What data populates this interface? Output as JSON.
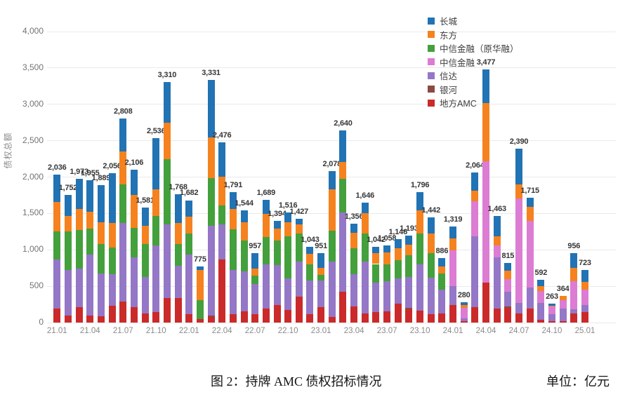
{
  "page": {
    "caption": "图 2：持牌 AMC 债权招标情况",
    "unit_label": "单位：亿元"
  },
  "chart_data": {
    "type": "bar",
    "stacked": true,
    "title": "图 2：持牌 AMC 债权招标情况",
    "unit": "亿元",
    "ylabel": "债权总额",
    "xlabel": "",
    "ylim": [
      0,
      4000
    ],
    "grid": true,
    "legend_position": "top-right",
    "yticks": [
      [
        0,
        "0"
      ],
      [
        500,
        "500"
      ],
      [
        1000,
        "1,000"
      ],
      [
        1500,
        "1,500"
      ],
      [
        2000,
        "2,000"
      ],
      [
        2500,
        "2,500"
      ],
      [
        3000,
        "3,000"
      ],
      [
        3500,
        "3,500"
      ],
      [
        4000,
        "4,000"
      ]
    ],
    "categories": [
      "21.01",
      "21.02",
      "21.03",
      "21.04",
      "21.05",
      "21.06",
      "21.07",
      "21.08",
      "21.09",
      "21.10",
      "21.11",
      "21.12",
      "22.01",
      "22.02",
      "22.03",
      "22.04",
      "22.05",
      "22.06",
      "22.07",
      "22.08",
      "22.09",
      "22.10",
      "22.11",
      "22.12",
      "23.01",
      "23.02",
      "23.03",
      "23.04",
      "23.05",
      "23.06",
      "23.07",
      "23.08",
      "23.09",
      "23.10",
      "23.11",
      "23.12",
      "24.01",
      "24.02",
      "24.03",
      "24.04",
      "24.05",
      "24.06",
      "24.07",
      "24.08",
      "24.09",
      "24.10",
      "24.11",
      "24.12",
      "25.01"
    ],
    "xtick_every": 3,
    "totals": [
      2036,
      1752,
      1973,
      1955,
      1889,
      2056,
      2808,
      2106,
      1581,
      2536,
      3310,
      1768,
      1682,
      775,
      3331,
      2476,
      1791,
      1544,
      957,
      1689,
      1394,
      1516,
      1427,
      1043,
      951,
      2078,
      2640,
      1356,
      1646,
      1042,
      1058,
      1146,
      1193,
      1796,
      1442,
      886,
      1319,
      280,
      2064,
      3477,
      1463,
      815,
      2390,
      1715,
      592,
      263,
      364,
      956,
      723
    ],
    "bar_labels": [
      "2,036",
      "1,752",
      "1,973",
      "1,955",
      "1,889",
      "2,056",
      "2,808",
      "2,106",
      "1,581",
      "2,536",
      "3,310",
      "1,768",
      "1,682",
      "775",
      "3,331",
      "2,476",
      "1,791",
      "1,544",
      "957",
      "1,689",
      "1,394",
      "1,516",
      "1,427",
      "1,043",
      "951",
      "2,078",
      "2,640",
      "1,356",
      "1,646",
      "1,042",
      "1,058",
      "1,146",
      "1,193",
      "1,796",
      "1,442",
      "886",
      "1,319",
      "280",
      "2,064",
      "3,477",
      "1,463",
      "815",
      "2,390",
      "1,715",
      "592",
      "263",
      "364",
      "956",
      "723"
    ],
    "series": [
      {
        "name": "地方AMC",
        "color": "#CB2A2A",
        "values": [
          195,
          95,
          210,
          96,
          87,
          235,
          290,
          210,
          130,
          145,
          340,
          335,
          112,
          48,
          80,
          867,
          115,
          150,
          113,
          193,
          241,
          176,
          354,
          113,
          209,
          80,
          420,
          225,
          130,
          145,
          150,
          260,
          185,
          165,
          120,
          128,
          241,
          20,
          210,
          546,
          193,
          200,
          125,
          190,
          43,
          23,
          16,
          128,
          145
        ]
      },
      {
        "name": "银河",
        "color": "#8B4A42",
        "values": [
          0,
          0,
          0,
          0,
          0,
          0,
          0,
          0,
          0,
          0,
          0,
          0,
          0,
          0,
          20,
          0,
          0,
          0,
          0,
          0,
          0,
          0,
          0,
          0,
          0,
          0,
          0,
          0,
          0,
          0,
          0,
          0,
          15,
          0,
          0,
          0,
          0,
          0,
          0,
          0,
          0,
          20,
          0,
          0,
          0,
          0,
          0,
          0,
          0
        ]
      },
      {
        "name": "信达",
        "color": "#9477C6",
        "values": [
          675,
          627,
          530,
          836,
          588,
          430,
          1076,
          690,
          500,
          915,
          1010,
          450,
          820,
          0,
          1230,
          483,
          610,
          557,
          417,
          610,
          546,
          434,
          482,
          465,
          369,
          760,
          1090,
          440,
          708,
          400,
          420,
          350,
          430,
          635,
          500,
          322,
          257,
          40,
          980,
          0,
          707,
          200,
          145,
          292,
          230,
          90,
          177,
          60,
          96
        ]
      },
      {
        "name": "中信金融",
        "color": "#DC7CD3",
        "values": [
          0,
          0,
          0,
          0,
          0,
          0,
          0,
          0,
          0,
          0,
          0,
          0,
          0,
          0,
          0,
          0,
          0,
          0,
          0,
          0,
          0,
          0,
          0,
          0,
          0,
          0,
          0,
          0,
          0,
          0,
          0,
          0,
          0,
          0,
          0,
          0,
          498,
          140,
          480,
          1671,
          160,
          180,
          1437,
          913,
          161,
          105,
          113,
          380,
          209
        ]
      },
      {
        "name": "中信金融（原华融）",
        "color": "#44A03C",
        "values": [
          380,
          530,
          530,
          360,
          408,
          363,
          534,
          400,
          450,
          402,
          900,
          290,
          290,
          258,
          660,
          257,
          560,
          420,
          113,
          370,
          338,
          579,
          385,
          225,
          80,
          420,
          470,
          360,
          385,
          260,
          230,
          250,
          300,
          420,
          330,
          225,
          0,
          0,
          0,
          0,
          0,
          0,
          0,
          0,
          0,
          0,
          0,
          0,
          0
        ]
      },
      {
        "name": "东方",
        "color": "#F5821E",
        "values": [
          405,
          216,
          288,
          234,
          298,
          338,
          450,
          450,
          255,
          369,
          500,
          290,
          234,
          417,
          550,
          401,
          280,
          250,
          96,
          321,
          169,
          192,
          129,
          145,
          97,
          570,
          225,
          210,
          285,
          145,
          160,
          160,
          140,
          320,
          270,
          96,
          161,
          40,
          145,
          803,
          129,
          115,
          193,
          200,
          70,
          15,
          58,
          180,
          112
        ]
      },
      {
        "name": "长城",
        "color": "#2173B4",
        "values": [
          381,
          284,
          415,
          429,
          508,
          690,
          458,
          356,
          246,
          705,
          560,
          403,
          226,
          52,
          791,
          468,
          226,
          167,
          218,
          195,
          100,
          135,
          77,
          95,
          196,
          248,
          435,
          121,
          138,
          92,
          98,
          126,
          123,
          256,
          222,
          115,
          162,
          40,
          249,
          457,
          274,
          100,
          490,
          120,
          88,
          30,
          0,
          208,
          161
        ]
      }
    ],
    "legend": [
      {
        "label": "长城",
        "color": "#2173B4"
      },
      {
        "label": "东方",
        "color": "#F5821E"
      },
      {
        "label": "中信金融（原华融）",
        "color": "#44A03C"
      },
      {
        "label": "中信金融",
        "color": "#DC7CD3"
      },
      {
        "label": "信达",
        "color": "#9477C6"
      },
      {
        "label": "银河",
        "color": "#8B4A42"
      },
      {
        "label": "地方AMC",
        "color": "#CB2A2A"
      }
    ]
  }
}
